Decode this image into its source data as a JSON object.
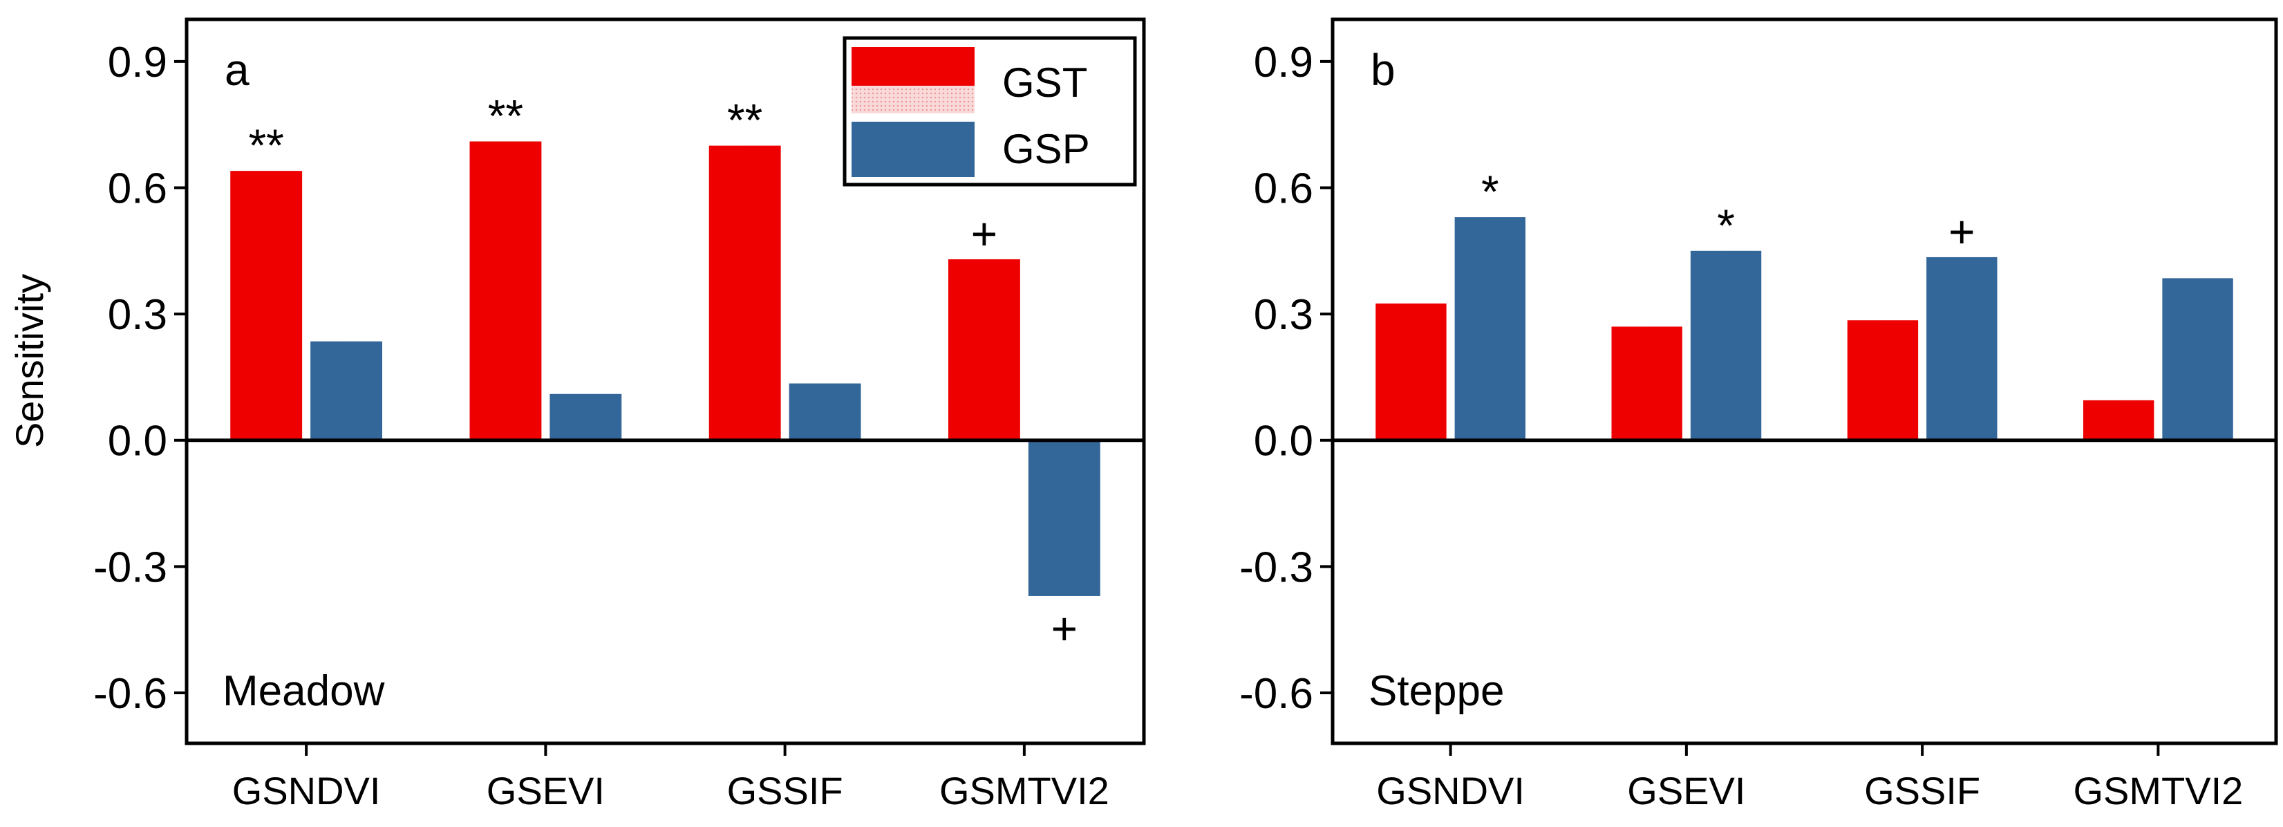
{
  "figure": {
    "ylabel": "Sensitivity",
    "legend": [
      {
        "name": "GST",
        "color": "#ee0000",
        "faded_color": "#f7c8c8"
      },
      {
        "name": "GSP",
        "color": "#336699",
        "faded_color": "#cdd9e8"
      }
    ]
  },
  "chart_data": [
    {
      "type": "bar",
      "panel": "a",
      "title": "Meadow",
      "ylabel": "Sensitivity",
      "ylim": [
        -0.72,
        1.0
      ],
      "yticks": [
        "0.9",
        "0.6",
        "0.3",
        "0.0",
        "-0.3",
        "-0.6"
      ],
      "ytick_values": [
        0.9,
        0.6,
        0.3,
        0.0,
        -0.3,
        -0.6
      ],
      "categories": [
        "GSNDVI",
        "GSEVI",
        "GSSIF",
        "GSMTVI2"
      ],
      "series": [
        {
          "name": "GST",
          "values": [
            0.64,
            0.71,
            0.7,
            0.43
          ],
          "significance": [
            "**",
            "**",
            "**",
            "+"
          ]
        },
        {
          "name": "GSP",
          "values": [
            0.235,
            0.11,
            0.135,
            -0.37
          ],
          "significance": [
            "",
            "",
            "",
            "+"
          ]
        }
      ]
    },
    {
      "type": "bar",
      "panel": "b",
      "title": "Steppe",
      "ylabel": "",
      "ylim": [
        -0.72,
        1.0
      ],
      "yticks": [
        "0.9",
        "0.6",
        "0.3",
        "0.0",
        "-0.3",
        "-0.6"
      ],
      "ytick_values": [
        0.9,
        0.6,
        0.3,
        0.0,
        -0.3,
        -0.6
      ],
      "categories": [
        "GSNDVI",
        "GSEVI",
        "GSSIF",
        "GSMTVI2"
      ],
      "series": [
        {
          "name": "GST",
          "values": [
            0.325,
            0.27,
            0.285,
            0.095
          ],
          "significance": [
            "",
            "",
            "",
            ""
          ]
        },
        {
          "name": "GSP",
          "values": [
            0.53,
            0.45,
            0.435,
            0.385
          ],
          "significance": [
            "*",
            "*",
            "+",
            ""
          ]
        }
      ]
    }
  ]
}
